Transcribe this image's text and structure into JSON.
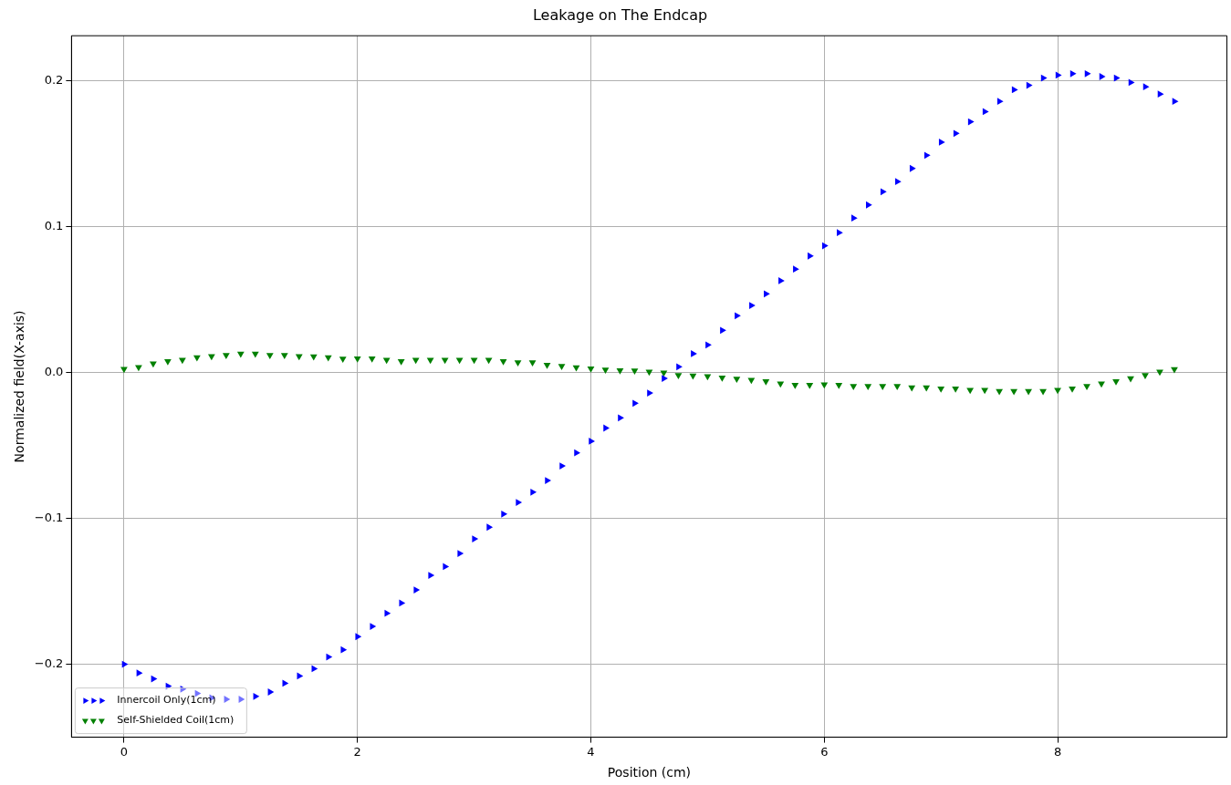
{
  "chart_data": {
    "type": "scatter",
    "title": "Leakage on The Endcap",
    "xlabel": "Position (cm)",
    "ylabel": "Normalized field(X-axis)",
    "x": [
      0,
      0.125,
      0.25,
      0.375,
      0.5,
      0.625,
      0.75,
      0.875,
      1,
      1.125,
      1.25,
      1.375,
      1.5,
      1.625,
      1.75,
      1.875,
      2,
      2.125,
      2.25,
      2.375,
      2.5,
      2.625,
      2.75,
      2.875,
      3,
      3.125,
      3.25,
      3.375,
      3.5,
      3.625,
      3.75,
      3.875,
      4,
      4.125,
      4.25,
      4.375,
      4.5,
      4.625,
      4.75,
      4.875,
      5,
      5.125,
      5.25,
      5.375,
      5.5,
      5.625,
      5.75,
      5.875,
      6,
      6.125,
      6.25,
      6.375,
      6.5,
      6.625,
      6.75,
      6.875,
      7,
      7.125,
      7.25,
      7.375,
      7.5,
      7.625,
      7.75,
      7.875,
      8,
      8.125,
      8.25,
      8.375,
      8.5,
      8.625,
      8.75,
      8.875,
      9
    ],
    "series": [
      {
        "name": "Innercoil Only(1cm)",
        "color": "#0000ff",
        "marker": "triangle",
        "values": [
          -0.2,
          -0.206,
          -0.21,
          -0.215,
          -0.217,
          -0.22,
          -0.223,
          -0.224,
          -0.224,
          -0.222,
          -0.219,
          -0.213,
          -0.208,
          -0.203,
          -0.195,
          -0.19,
          -0.181,
          -0.174,
          -0.165,
          -0.158,
          -0.149,
          -0.139,
          -0.133,
          -0.124,
          -0.114,
          -0.106,
          -0.097,
          -0.089,
          -0.082,
          -0.074,
          -0.064,
          -0.055,
          -0.047,
          -0.038,
          -0.031,
          -0.021,
          -0.014,
          -0.004,
          0.004,
          0.013,
          0.019,
          0.029,
          0.039,
          0.046,
          0.054,
          0.063,
          0.071,
          0.08,
          0.087,
          0.096,
          0.106,
          0.115,
          0.124,
          0.131,
          0.14,
          0.149,
          0.158,
          0.164,
          0.172,
          0.179,
          0.186,
          0.194,
          0.197,
          0.202,
          0.204,
          0.205,
          0.205,
          0.203,
          0.202,
          0.199,
          0.196,
          0.191,
          0.186
        ]
      },
      {
        "name": "Self-Shielded Coil(1cm)",
        "color": "#008000",
        "marker": "triangle",
        "values": [
          0.0025,
          0.0037,
          0.0063,
          0.0078,
          0.0088,
          0.0105,
          0.0113,
          0.012,
          0.013,
          0.013,
          0.012,
          0.012,
          0.0113,
          0.011,
          0.0105,
          0.0095,
          0.0097,
          0.0097,
          0.0088,
          0.0078,
          0.0088,
          0.0088,
          0.0088,
          0.0088,
          0.0088,
          0.0088,
          0.0078,
          0.007,
          0.007,
          0.0053,
          0.0045,
          0.0035,
          0.0028,
          0.002,
          0.0016,
          0.0014,
          0.0006,
          0.0,
          -0.0017,
          -0.002,
          -0.0025,
          -0.0034,
          -0.0043,
          -0.0051,
          -0.006,
          -0.0076,
          -0.0085,
          -0.0085,
          -0.0082,
          -0.0085,
          -0.0093,
          -0.0093,
          -0.0093,
          -0.0093,
          -0.0102,
          -0.0102,
          -0.011,
          -0.011,
          -0.0119,
          -0.0119,
          -0.0127,
          -0.0127,
          -0.0127,
          -0.0127,
          -0.0119,
          -0.011,
          -0.0093,
          -0.0076,
          -0.006,
          -0.004,
          -0.0017,
          0.0006,
          0.0023
        ]
      }
    ],
    "xlim": [
      -0.45,
      9.45
    ],
    "xticks": [
      0,
      2,
      4,
      6,
      8
    ],
    "ylim": [
      -0.25,
      0.231
    ],
    "yticks": [
      {
        "value": -0.2,
        "label": "−0.2"
      },
      {
        "value": -0.1,
        "label": "−0.1"
      },
      {
        "value": 0,
        "label": "0.0"
      },
      {
        "value": 0.1,
        "label": "0.1"
      },
      {
        "value": 0.2,
        "label": "0.2"
      }
    ],
    "grid": true,
    "legend": "bottom left"
  }
}
